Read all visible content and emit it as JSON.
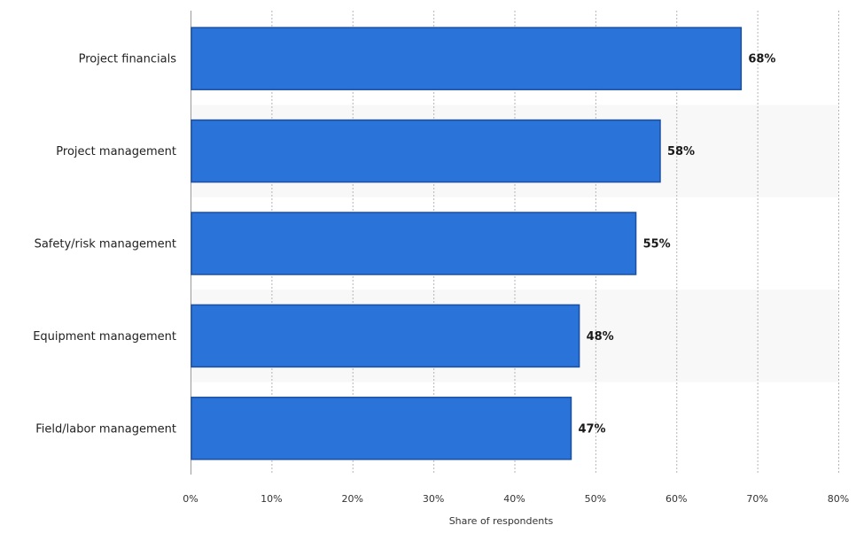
{
  "chart_data": {
    "type": "bar",
    "orientation": "horizontal",
    "categories": [
      "Project financials",
      "Project management",
      "Safety/risk management",
      "Equipment management",
      "Field/labor management"
    ],
    "values": [
      68,
      58,
      55,
      48,
      47
    ],
    "value_labels": [
      "68%",
      "58%",
      "55%",
      "48%",
      "47%"
    ],
    "xlabel": "Share of respondents",
    "ylabel": "",
    "xlim": [
      0,
      80
    ],
    "x_ticks": [
      0,
      10,
      20,
      30,
      40,
      50,
      60,
      70,
      80
    ],
    "x_tick_labels": [
      "0%",
      "10%",
      "20%",
      "30%",
      "40%",
      "50%",
      "60%",
      "70%",
      "80%"
    ],
    "grid": true,
    "bar_color": "#2a73d9",
    "bar_border_color": "#1a4fa3",
    "band_color": "#f7f8f7"
  }
}
